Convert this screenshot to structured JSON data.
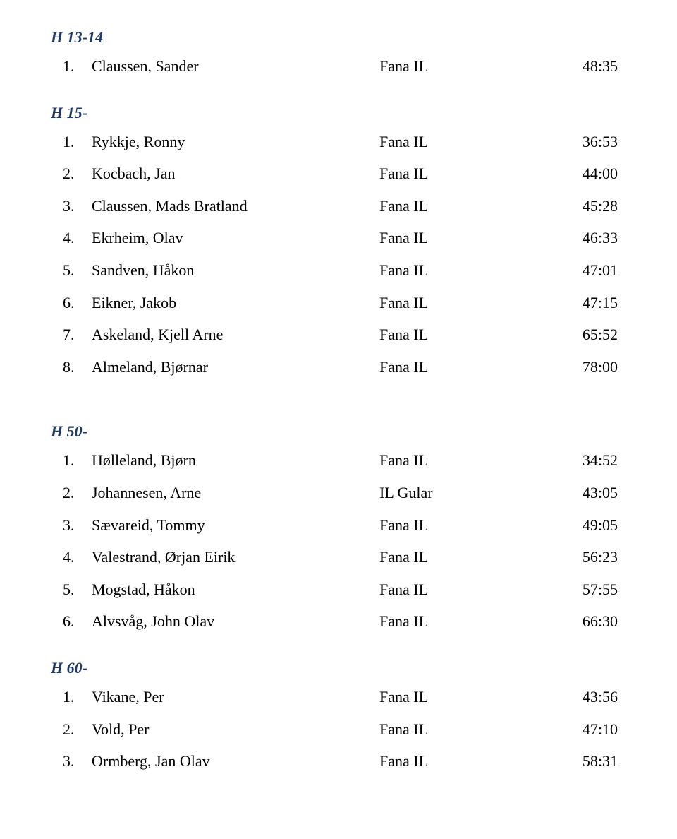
{
  "sections": [
    {
      "heading": "H 13-14",
      "rows": [
        {
          "rank": "1",
          "name": "Claussen, Sander",
          "club": "Fana IL",
          "time": "48:35"
        }
      ],
      "gapLarge": false
    },
    {
      "heading": "H 15-",
      "rows": [
        {
          "rank": "1",
          "name": "Rykkje, Ronny",
          "club": "Fana IL",
          "time": "36:53"
        },
        {
          "rank": "2",
          "name": "Kocbach, Jan",
          "club": "Fana IL",
          "time": "44:00"
        },
        {
          "rank": "3",
          "name": "Claussen, Mads Bratland",
          "club": "Fana IL",
          "time": "45:28"
        },
        {
          "rank": "4",
          "name": "Ekrheim, Olav",
          "club": "Fana IL",
          "time": "46:33"
        },
        {
          "rank": "5",
          "name": "Sandven, Håkon",
          "club": "Fana IL",
          "time": "47:01"
        },
        {
          "rank": "6",
          "name": "Eikner, Jakob",
          "club": "Fana IL",
          "time": "47:15"
        },
        {
          "rank": "7",
          "name": "Askeland, Kjell Arne",
          "club": "Fana IL",
          "time": "65:52"
        },
        {
          "rank": "8",
          "name": "Almeland, Bjørnar",
          "club": "Fana IL",
          "time": "78:00"
        }
      ],
      "gapLarge": true
    },
    {
      "heading": "H 50-",
      "rows": [
        {
          "rank": "1",
          "name": "Hølleland, Bjørn",
          "club": "Fana IL",
          "time": "34:52"
        },
        {
          "rank": "2",
          "name": "Johannesen, Arne",
          "club": "IL Gular",
          "time": "43:05"
        },
        {
          "rank": "3",
          "name": "Sævareid, Tommy",
          "club": "Fana IL",
          "time": "49:05"
        },
        {
          "rank": "4",
          "name": "Valestrand, Ørjan Eirik",
          "club": "Fana IL",
          "time": "56:23"
        },
        {
          "rank": "5",
          "name": "Mogstad, Håkon",
          "club": "Fana IL",
          "time": "57:55"
        },
        {
          "rank": "6",
          "name": "Alvsvåg, John Olav",
          "club": "Fana IL",
          "time": "66:30"
        }
      ],
      "gapLarge": false
    },
    {
      "heading": "H 60-",
      "rows": [
        {
          "rank": "1",
          "name": "Vikane, Per",
          "club": "Fana IL",
          "time": "43:56"
        },
        {
          "rank": "2",
          "name": "Vold, Per",
          "club": "Fana IL",
          "time": "47:10"
        },
        {
          "rank": "3",
          "name": "Ormberg, Jan Olav",
          "club": "Fana IL",
          "time": "58:31"
        }
      ],
      "gapLarge": false
    }
  ],
  "style": {
    "heading_color": "#1f3864",
    "text_color": "#000000",
    "background_color": "#ffffff",
    "font_family": "Times New Roman",
    "font_size_pt": 16
  }
}
